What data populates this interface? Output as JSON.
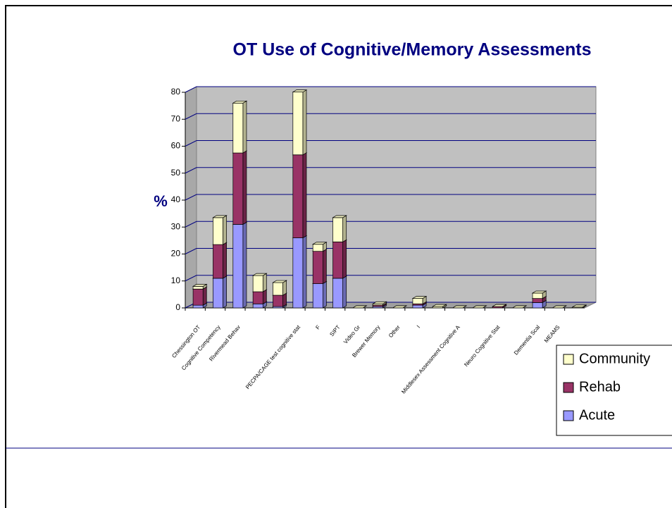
{
  "chart_data": {
    "type": "bar3d_stacked",
    "title": "OT Use of Cognitive/Memory Assessments",
    "y_label": "%",
    "categories": [
      "Chessington OT",
      "Cognitive Competency",
      "Rivermead Behav",
      null,
      null,
      "PECPA/CAGE test cognitive stat",
      "F",
      "SIPT",
      "Video Gr",
      "Brewer Memory",
      "Other",
      "I",
      null,
      "Middlesex Assessment Cognitive A",
      null,
      "Neuro Cognitive Stat",
      null,
      "Dementia Scal",
      "MEAMS",
      null
    ],
    "series": [
      {
        "name": "Acute",
        "color": "#9999ff",
        "values": [
          1,
          11,
          31,
          1.5,
          0.5,
          26,
          9,
          11,
          0,
          0.5,
          0,
          1,
          0,
          0,
          0,
          0,
          0,
          2,
          0,
          0
        ]
      },
      {
        "name": "Rehab",
        "color": "#993366",
        "values": [
          6,
          12.5,
          26.5,
          4.5,
          4.2,
          30.8,
          12,
          13.5,
          0,
          0.5,
          0,
          0.5,
          0,
          0,
          0,
          0.5,
          0,
          1.5,
          0,
          0
        ]
      },
      {
        "name": "Community",
        "color": "#ffffcc",
        "values": [
          1,
          10,
          18.5,
          6,
          4.7,
          23.3,
          2.6,
          9,
          0,
          0.5,
          0,
          2,
          0.5,
          0,
          0,
          0,
          0,
          2,
          0,
          0.3
        ]
      }
    ],
    "ylim": [
      0,
      80
    ],
    "yticks": [
      0,
      10,
      20,
      30,
      40,
      50,
      60,
      70,
      80
    ],
    "grid": true,
    "legend": "right"
  }
}
